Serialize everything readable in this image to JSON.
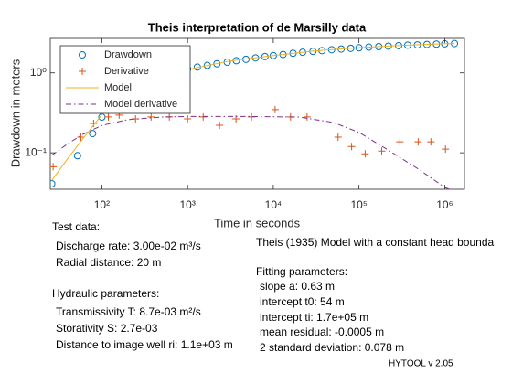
{
  "chart_data": {
    "type": "line",
    "title": "Theis interpretation of de Marsilly data",
    "xlabel": "Time in seconds",
    "ylabel": "Drawdown in meters",
    "xscale": "log",
    "yscale": "log",
    "xlim": [
      25,
      1700000
    ],
    "ylim": [
      0.035,
      2.7
    ],
    "xticks": [
      {
        "value": 100,
        "label": "10²"
      },
      {
        "value": 1000,
        "label": "10³"
      },
      {
        "value": 10000,
        "label": "10⁴"
      },
      {
        "value": 100000,
        "label": "10⁵"
      },
      {
        "value": 1000000,
        "label": "10⁶"
      }
    ],
    "yticks": [
      {
        "value": 0.1,
        "label": "10⁻¹"
      },
      {
        "value": 1,
        "label": "10⁰"
      }
    ],
    "grid": false,
    "legend": "upper-left",
    "series": [
      {
        "name": "Drawdown",
        "color": "#0072bd",
        "marker": "o",
        "linestyle": "none",
        "x": [
          26,
          52,
          78,
          100,
          130,
          170,
          220,
          290,
          370,
          480,
          620,
          800,
          1000,
          1300,
          1700,
          2200,
          2900,
          3700,
          4800,
          6200,
          8000,
          10000,
          13000,
          17000,
          22000,
          29000,
          37000,
          48000,
          62000,
          80000,
          100000,
          130000,
          170000,
          220000,
          290000,
          370000,
          480000,
          620000,
          800000,
          1000000,
          1300000
        ],
        "values": [
          0.041,
          0.092,
          0.174,
          0.28,
          0.55,
          0.65,
          0.72,
          0.8,
          0.87,
          0.94,
          1.0,
          1.06,
          1.12,
          1.18,
          1.24,
          1.3,
          1.36,
          1.42,
          1.48,
          1.54,
          1.6,
          1.65,
          1.7,
          1.76,
          1.81,
          1.86,
          1.9,
          1.95,
          1.99,
          2.03,
          2.06,
          2.1,
          2.13,
          2.16,
          2.19,
          2.22,
          2.24,
          2.27,
          2.29,
          2.31,
          2.33
        ]
      },
      {
        "name": "Derivative",
        "color": "#d95319",
        "marker": "+",
        "linestyle": "none",
        "x": [
          27,
          57,
          80,
          119,
          159,
          247,
          375,
          612,
          1000,
          1520,
          2360,
          3670,
          5570,
          10500,
          15900,
          24800,
          57000,
          82000,
          118000,
          184000,
          300000,
          490000,
          690000,
          1020000
        ],
        "values": [
          0.067,
          0.157,
          0.233,
          0.281,
          0.296,
          0.266,
          0.281,
          0.281,
          0.266,
          0.281,
          0.221,
          0.266,
          0.281,
          0.347,
          0.281,
          0.281,
          0.157,
          0.12,
          0.097,
          0.105,
          0.137,
          0.137,
          0.137,
          0.111
        ]
      },
      {
        "name": "Model",
        "color": "#edb120",
        "marker": "none",
        "linestyle": "solid",
        "x": [
          26,
          40,
          60,
          100,
          150,
          250,
          500,
          1000,
          3000,
          10000,
          30000,
          100000,
          300000,
          1000000,
          1300000
        ],
        "values": [
          0.045,
          0.085,
          0.15,
          0.3,
          0.45,
          0.62,
          0.85,
          1.1,
          1.4,
          1.65,
          1.88,
          2.07,
          2.2,
          2.32,
          2.33
        ]
      },
      {
        "name": "Model derivative",
        "color": "#7e2f8e",
        "marker": "none",
        "linestyle": "dashdot",
        "x": [
          26,
          40,
          60,
          100,
          200,
          500,
          1000,
          5000,
          20000,
          50000,
          100000,
          200000,
          500000,
          1000000,
          1600000
        ],
        "values": [
          0.093,
          0.13,
          0.17,
          0.22,
          0.26,
          0.28,
          0.285,
          0.285,
          0.28,
          0.24,
          0.18,
          0.115,
          0.062,
          0.037,
          0.03
        ]
      }
    ]
  },
  "notes_left": [
    "Test data:",
    "Discharge rate: 3.00e-02 m³/s",
    "Radial distance: 20 m",
    "Hydraulic parameters:",
    "Transmissivity T: 8.7e-03 m²/s",
    "Storativity S: 2.7e-03",
    "Distance to image well ri: 1.1e+03 m"
  ],
  "notes_right": [
    "Theis (1935) Model with a constant head bounda",
    "Fitting parameters:",
    "slope a: 0.63 m",
    "intercept t0: 54 m",
    "intercept ti: 1.7e+05 m",
    "mean residual: -0.0005 m",
    "2 standard deviation: 0.078 m"
  ],
  "version": "HYTOOL v 2.05"
}
